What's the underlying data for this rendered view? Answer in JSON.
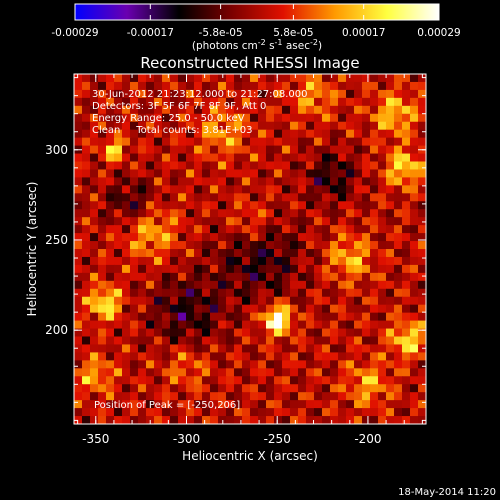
{
  "window": {
    "background": "#000000"
  },
  "colorbar": {
    "ticks": [
      "-0.00029",
      "-0.00017",
      "-5.8e-05",
      "5.8e-05",
      "0.00017",
      "0.00029"
    ],
    "tick_values": [
      -0.00029,
      -0.00017,
      -5.8e-05,
      5.8e-05,
      0.00017,
      0.00029
    ],
    "range": [
      -0.00029,
      0.00029
    ],
    "units": {
      "prefix": "(photons cm",
      "sup1": "-2",
      "mid1": " s",
      "sup2": "-1",
      "mid2": " asec",
      "sup3": "-2",
      "suffix": ")"
    },
    "gradient_colors": [
      "#0000ff",
      "#6a00b0",
      "#000000",
      "#7a0000",
      "#e01000",
      "#ff9a00",
      "#ffff40",
      "#ffffff"
    ]
  },
  "plot": {
    "title": "Reconstructed RHESSI Image",
    "info_lines": [
      "30-Jun-2012 21:23:12.000 to 21:27:08.000",
      "Detectors: 3F 5F 6F 7F 8F 9F, Att 0",
      "Energy Range: 25.0 - 50.0 keV",
      "Clean     Total counts: 3.81E+03"
    ],
    "peak_label": "Position of Peak = [-250,206]",
    "xlabel": "Heliocentric X (arcsec)",
    "ylabel": "Heliocentric Y (arcsec)",
    "x_ticks": [
      "-350",
      "-300",
      "-250",
      "-200"
    ],
    "x_tick_values": [
      -350,
      -300,
      -250,
      -200
    ],
    "y_ticks": [
      "200",
      "250",
      "300"
    ],
    "y_tick_values": [
      200,
      250,
      300
    ],
    "xlim": [
      -362,
      -168
    ],
    "ylim": [
      148,
      342
    ],
    "peak_position": [
      -250,
      206
    ]
  },
  "timestamp": "18-May-2014 11:20"
}
